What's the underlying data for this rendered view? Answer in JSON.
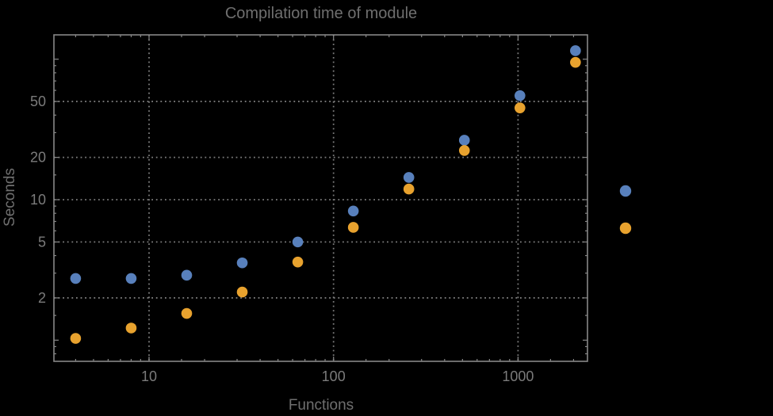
{
  "chart_data": {
    "type": "scatter",
    "title": "Compilation time of module",
    "xlabel": "Functions",
    "ylabel": "Seconds",
    "x_scale": "log",
    "y_scale": "log",
    "grid": "dotted",
    "xlim": [
      3.05,
      2380
    ],
    "ylim": [
      0.71,
      149
    ],
    "x_ticks": [
      10,
      100,
      1000
    ],
    "y_ticks": [
      2,
      5,
      10,
      20,
      50
    ],
    "y_ticks_unlabeled": [
      1,
      100
    ],
    "x_gridlines": [
      10,
      100,
      1000
    ],
    "y_gridlines": [
      2,
      5,
      10,
      20,
      50
    ],
    "x": [
      4,
      8,
      16,
      32,
      64,
      128,
      256,
      512,
      1024,
      2048
    ],
    "series": [
      {
        "name": "",
        "color": "#5880bc",
        "values": [
          2.75,
          2.75,
          2.9,
          3.55,
          5.0,
          8.3,
          14.4,
          26.5,
          55,
          115
        ]
      },
      {
        "name": "",
        "color": "#e8a22e",
        "values": [
          1.03,
          1.22,
          1.55,
          2.2,
          3.6,
          6.35,
          11.9,
          22.4,
          45,
          95
        ]
      }
    ],
    "legend": {
      "position": "right-of-plot",
      "labels_visible": false,
      "markers": [
        {
          "color": "#5880bc"
        },
        {
          "color": "#e8a22e"
        }
      ]
    }
  },
  "style": {
    "background": "#000000",
    "text_color": "#6f6f6f",
    "tick_label_color": "#7b7b7b",
    "frame_color": "#878787",
    "grid_color": "#7c7c7c"
  }
}
